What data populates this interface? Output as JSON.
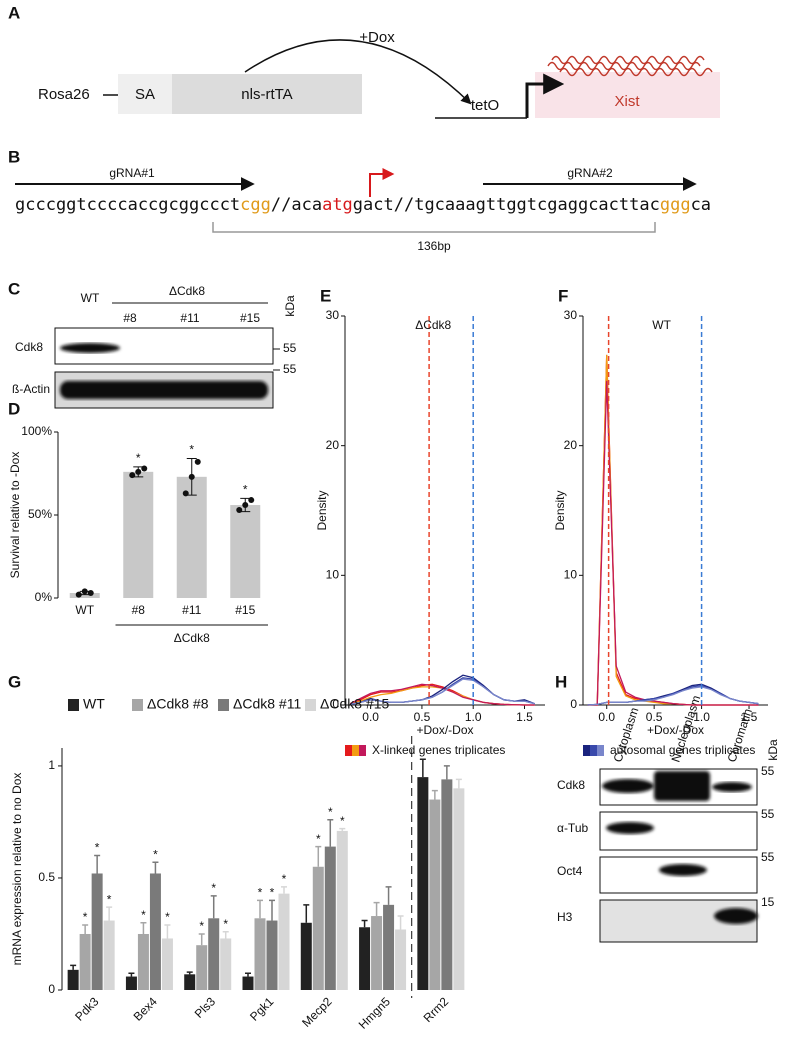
{
  "panel_a": {
    "label": "A",
    "locus": "Rosa26",
    "sa": "SA",
    "transactivator": "nls-rtTA",
    "inducer": "+Dox",
    "operator": "tetO",
    "gene": "Xist"
  },
  "panel_b": {
    "label": "B",
    "grna_1": "gRNA#1",
    "grna_2": "gRNA#2",
    "sequence": [
      {
        "text": "gcccggtccccaccgcggccct",
        "color": "#111111"
      },
      {
        "text": "cgg",
        "color": "#e09a1a"
      },
      {
        "text": "//aca",
        "color": "#111111"
      },
      {
        "text": "atg",
        "color": "#d7191c"
      },
      {
        "text": "gact//tgcaaagttggtcgaggcacttac",
        "color": "#111111"
      },
      {
        "text": "ggg",
        "color": "#e09a1a"
      },
      {
        "text": "ca",
        "color": "#111111"
      }
    ],
    "deletion": "136bp"
  },
  "panel_c": {
    "label": "C",
    "wt": "WT",
    "group": "ΔCdk8",
    "clones": [
      "#8",
      "#11",
      "#15"
    ],
    "unit": "kDa",
    "blots": [
      {
        "name": "Cdk8",
        "marker": "55"
      },
      {
        "name": "ß-Actin",
        "marker": "55"
      }
    ]
  },
  "panel_h": {
    "label": "H",
    "fractions": [
      "Cytoplasm",
      "Nucleoplasm",
      "Chromatin"
    ],
    "unit": "kDa",
    "blots": [
      {
        "name": "Cdk8",
        "marker": "55"
      },
      {
        "name": "α-Tub",
        "marker": "55"
      },
      {
        "name": "Oct4",
        "marker": "55"
      },
      {
        "name": "H3",
        "marker": "15"
      }
    ]
  },
  "chart_data": [
    {
      "type": "bar",
      "panel": "D",
      "ylabel": "Survival relative to -Dox",
      "group_label": "ΔCdk8",
      "categories": [
        "WT",
        "#8",
        "#11",
        "#15"
      ],
      "values": [
        3,
        76,
        73,
        56
      ],
      "errors": [
        1,
        3,
        11,
        4
      ],
      "points": [
        [
          2,
          4,
          3
        ],
        [
          74,
          76,
          78
        ],
        [
          63,
          73,
          82
        ],
        [
          53,
          56,
          59
        ]
      ],
      "markers": [
        null,
        "*",
        "*",
        "*"
      ],
      "color": "#c8c8c8",
      "ylim": [
        0,
        100
      ],
      "yticks": [
        {
          "value": 0,
          "label": "0%"
        },
        {
          "value": 50,
          "label": "50%"
        },
        {
          "value": 100,
          "label": "100%"
        }
      ]
    },
    {
      "type": "line",
      "panel": "E",
      "title": "ΔCdk8",
      "xlabel": "+Dox/-Dox",
      "ylabel": "Density",
      "legend_label": "X-linked genes triplicates",
      "x": [
        -0.2,
        -0.1,
        0,
        0.1,
        0.2,
        0.3,
        0.4,
        0.5,
        0.6,
        0.7,
        0.8,
        0.9,
        1,
        1.1,
        1.2,
        1.3,
        1.4,
        1.5,
        1.6
      ],
      "series": [
        {
          "color": "#e41a1c",
          "values": [
            0.1,
            0.4,
            0.8,
            1.0,
            1.0,
            1.1,
            1.3,
            1.5,
            1.6,
            1.4,
            1.1,
            0.7,
            0.4,
            0.2,
            0.1,
            0.05,
            0.02,
            0,
            0
          ]
        },
        {
          "color": "#f39c12",
          "values": [
            0.1,
            0.3,
            0.6,
            0.8,
            0.9,
            1.1,
            1.3,
            1.4,
            1.4,
            1.3,
            1.0,
            0.7,
            0.4,
            0.2,
            0.1,
            0.05,
            0.02,
            0,
            0
          ]
        },
        {
          "color": "#c2185b",
          "values": [
            0.1,
            0.5,
            0.9,
            1.1,
            1.1,
            1.2,
            1.4,
            1.6,
            1.5,
            1.3,
            1.0,
            0.6,
            0.4,
            0.2,
            0.1,
            0.05,
            0.02,
            0,
            0
          ]
        },
        {
          "color": "#1a237e",
          "values": [
            0.05,
            0.2,
            0.5,
            0.3,
            0.2,
            0.2,
            0.3,
            0.4,
            0.7,
            1.2,
            1.8,
            2.3,
            2.1,
            1.5,
            0.8,
            0.4,
            0.3,
            0.4,
            0.1
          ]
        },
        {
          "color": "#3949ab",
          "values": [
            0.05,
            0.2,
            0.4,
            0.3,
            0.2,
            0.2,
            0.3,
            0.4,
            0.6,
            1.0,
            1.6,
            2.1,
            2.0,
            1.4,
            0.8,
            0.4,
            0.3,
            0.3,
            0.1
          ]
        },
        {
          "color": "#7986cb",
          "values": [
            0.05,
            0.2,
            0.4,
            0.3,
            0.2,
            0.2,
            0.3,
            0.4,
            0.6,
            1.0,
            1.5,
            2.0,
            1.9,
            1.4,
            0.8,
            0.4,
            0.3,
            0.3,
            0.1
          ]
        }
      ],
      "vlines": [
        {
          "value": 0.57,
          "color": "#e8452c"
        },
        {
          "value": 1.0,
          "color": "#3a7bd5"
        }
      ],
      "xlim": [
        -0.25,
        1.7
      ],
      "xticks": [
        {
          "value": 0,
          "label": "0.0"
        },
        0.5,
        {
          "value": 1,
          "label": "1.0"
        },
        1.5
      ],
      "ylim": [
        0,
        30
      ],
      "yticks": [
        0,
        10,
        20,
        30
      ]
    },
    {
      "type": "line",
      "panel": "F",
      "title": "WT",
      "xlabel": "+Dox/-Dox",
      "ylabel": "Density",
      "legend_label": "autosomal genes triplicates",
      "x": [
        -0.2,
        -0.1,
        0,
        0.1,
        0.2,
        0.3,
        0.4,
        0.5,
        0.6,
        0.7,
        0.8,
        0.9,
        1,
        1.1,
        1.2,
        1.3,
        1.4,
        1.5,
        1.6
      ],
      "series": [
        {
          "color": "#e41a1c",
          "values": [
            0,
            0,
            27,
            2.5,
            0.8,
            0.5,
            0.4,
            0.3,
            0.2,
            0.1,
            0.05,
            0,
            0,
            0,
            0,
            0,
            0,
            0,
            0
          ]
        },
        {
          "color": "#f39c12",
          "values": [
            0,
            0,
            27,
            2.2,
            0.7,
            0.4,
            0.3,
            0.2,
            0.1,
            0.1,
            0.05,
            0,
            0,
            0,
            0,
            0,
            0,
            0,
            0
          ]
        },
        {
          "color": "#c2185b",
          "values": [
            0,
            0,
            25,
            3.0,
            1.0,
            0.6,
            0.4,
            0.3,
            0.2,
            0.1,
            0.05,
            0,
            0,
            0,
            0,
            0,
            0,
            0,
            0
          ]
        },
        {
          "color": "#1a237e",
          "values": [
            0,
            0.05,
            0.2,
            0.2,
            0.2,
            0.3,
            0.4,
            0.5,
            0.7,
            0.9,
            1.2,
            1.5,
            1.6,
            1.3,
            0.9,
            0.5,
            0.3,
            0.2,
            0.1
          ]
        },
        {
          "color": "#3949ab",
          "values": [
            0,
            0.05,
            0.2,
            0.2,
            0.2,
            0.3,
            0.4,
            0.5,
            0.6,
            0.9,
            1.1,
            1.4,
            1.5,
            1.2,
            0.9,
            0.5,
            0.3,
            0.2,
            0.1
          ]
        },
        {
          "color": "#7986cb",
          "values": [
            0,
            0.05,
            0.2,
            0.2,
            0.2,
            0.3,
            0.3,
            0.4,
            0.6,
            0.8,
            1.1,
            1.3,
            1.4,
            1.2,
            0.8,
            0.5,
            0.3,
            0.2,
            0.1
          ]
        }
      ],
      "vlines": [
        {
          "value": 0.02,
          "color": "#e8452c"
        },
        {
          "value": 1.0,
          "color": "#3a7bd5"
        }
      ],
      "xlim": [
        -0.25,
        1.7
      ],
      "xticks": [
        {
          "value": 0,
          "label": "0.0"
        },
        0.5,
        {
          "value": 1,
          "label": "1.0"
        },
        1.5
      ],
      "ylim": [
        0,
        30
      ],
      "yticks": [
        0,
        10,
        20,
        30
      ]
    },
    {
      "type": "bar",
      "panel": "G",
      "ylabel": "mRNA expression relative to no Dox",
      "categories": [
        "Pdk3",
        "Bex4",
        "Pls3",
        "Pgk1",
        "Mecp2",
        "Hmgn5",
        "Rrm2"
      ],
      "series": [
        {
          "name": "WT",
          "color": "#222222",
          "values": [
            0.09,
            0.06,
            0.07,
            0.06,
            0.3,
            0.28,
            0.95
          ],
          "errors": [
            0.02,
            0.015,
            0.01,
            0.015,
            0.08,
            0.03,
            0.08
          ],
          "markers": [
            null,
            null,
            null,
            null,
            null,
            null,
            null
          ]
        },
        {
          "name": "ΔCdk8 #8",
          "color": "#a6a6a6",
          "values": [
            0.25,
            0.25,
            0.2,
            0.32,
            0.55,
            0.33,
            0.85
          ],
          "errors": [
            0.04,
            0.05,
            0.05,
            0.08,
            0.09,
            0.06,
            0.04
          ],
          "markers": [
            "*",
            "*",
            "*",
            "*",
            "*",
            null,
            null
          ]
        },
        {
          "name": "ΔCdk8 #11",
          "color": "#7a7a7a",
          "values": [
            0.52,
            0.52,
            0.32,
            0.31,
            0.64,
            0.38,
            0.94
          ],
          "errors": [
            0.08,
            0.05,
            0.1,
            0.09,
            0.12,
            0.08,
            0.06
          ],
          "markers": [
            "*",
            "*",
            "*",
            "*",
            "*",
            null,
            null
          ]
        },
        {
          "name": "ΔCdk8 #15",
          "color": "#d6d6d6",
          "values": [
            0.31,
            0.23,
            0.23,
            0.43,
            0.71,
            0.27,
            0.9
          ],
          "errors": [
            0.06,
            0.06,
            0.03,
            0.03,
            0.01,
            0.06,
            0.04
          ],
          "markers": [
            "*",
            "*",
            "*",
            "*",
            "*",
            null,
            null
          ]
        }
      ],
      "ylim": [
        0,
        1.08
      ],
      "yticks": [
        0,
        0.5,
        1
      ]
    }
  ]
}
